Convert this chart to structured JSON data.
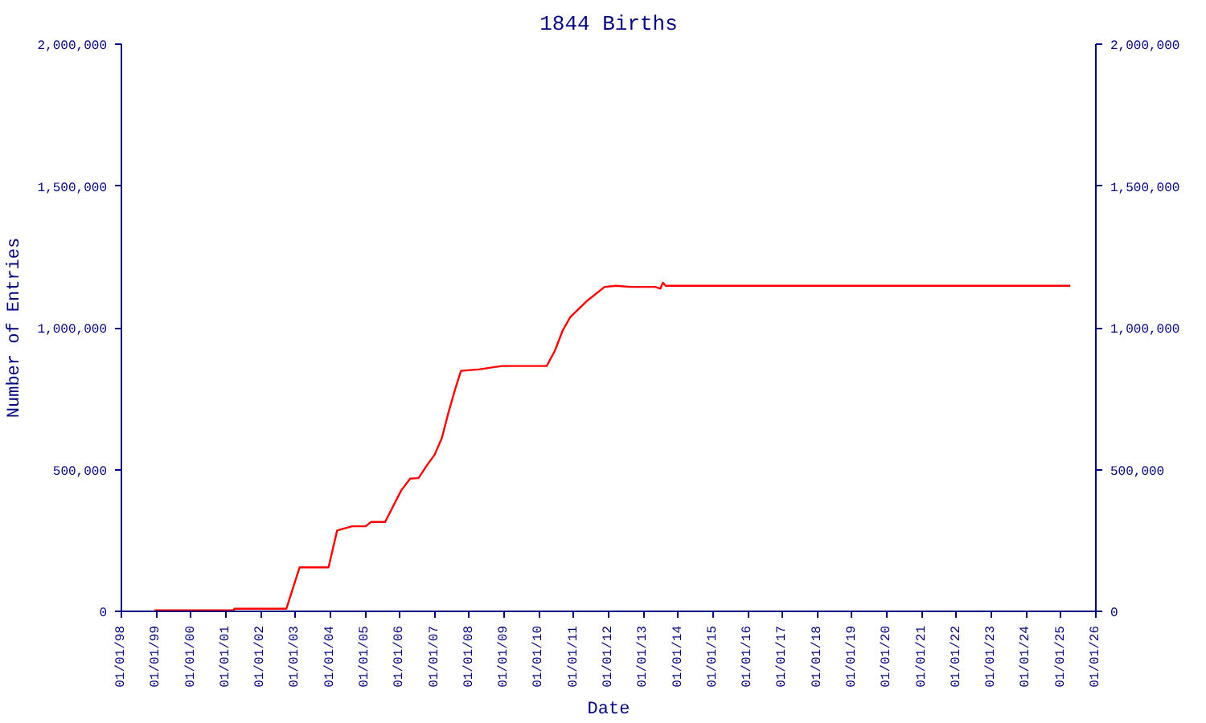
{
  "chart_data": {
    "type": "line",
    "title": "1844 Births",
    "xlabel": "Date",
    "ylabel": "Number of Entries",
    "x": [
      "1998-12-15",
      "2001-03-25",
      "2001-04-01",
      "2002-09-28",
      "2003-02-14",
      "2003-12-15",
      "2004-03-14",
      "2004-08-18",
      "2005-01-08",
      "2005-03-03",
      "2005-07-31",
      "2006-01-15",
      "2006-04-20",
      "2006-07-16",
      "2006-10-19",
      "2007-01-01",
      "2007-03-18",
      "2007-05-26",
      "2007-07-31",
      "2007-10-05",
      "2008-04-08",
      "2008-12-06",
      "2010-03-22",
      "2010-06-14",
      "2010-09-06",
      "2010-11-24",
      "2011-05-10",
      "2011-11-20",
      "2012-03-14",
      "2012-08-22",
      "2013-05-04",
      "2013-06-28",
      "2013-07-24",
      "2013-08-22",
      "2025-04-08"
    ],
    "series": [
      {
        "color": "#ff0000",
        "values": [
          4000,
          4000,
          9000,
          9000,
          155000,
          155000,
          285000,
          300000,
          300000,
          315000,
          315000,
          426000,
          468000,
          470000,
          518000,
          552000,
          611000,
          700000,
          778000,
          848000,
          853000,
          865000,
          865000,
          917000,
          990000,
          1037000,
          1092000,
          1144000,
          1148000,
          1144000,
          1144000,
          1138000,
          1159000,
          1148000,
          1148000
        ]
      }
    ],
    "xlim": [
      "1998-01-01",
      "2026-01-01"
    ],
    "xticks": [
      {
        "value": "1998-01-01",
        "label": "01/01/98"
      },
      {
        "value": "1999-01-01",
        "label": "01/01/99"
      },
      {
        "value": "2000-01-01",
        "label": "01/01/00"
      },
      {
        "value": "2001-01-01",
        "label": "01/01/01"
      },
      {
        "value": "2002-01-01",
        "label": "01/01/02"
      },
      {
        "value": "2003-01-01",
        "label": "01/01/03"
      },
      {
        "value": "2004-01-01",
        "label": "01/01/04"
      },
      {
        "value": "2005-01-01",
        "label": "01/01/05"
      },
      {
        "value": "2006-01-01",
        "label": "01/01/06"
      },
      {
        "value": "2007-01-01",
        "label": "01/01/07"
      },
      {
        "value": "2008-01-01",
        "label": "01/01/08"
      },
      {
        "value": "2009-01-01",
        "label": "01/01/09"
      },
      {
        "value": "2010-01-01",
        "label": "01/01/10"
      },
      {
        "value": "2011-01-01",
        "label": "01/01/11"
      },
      {
        "value": "2012-01-01",
        "label": "01/01/12"
      },
      {
        "value": "2013-01-01",
        "label": "01/01/13"
      },
      {
        "value": "2014-01-01",
        "label": "01/01/14"
      },
      {
        "value": "2015-01-01",
        "label": "01/01/15"
      },
      {
        "value": "2016-01-01",
        "label": "01/01/16"
      },
      {
        "value": "2017-01-01",
        "label": "01/01/17"
      },
      {
        "value": "2018-01-01",
        "label": "01/01/18"
      },
      {
        "value": "2019-01-01",
        "label": "01/01/19"
      },
      {
        "value": "2020-01-01",
        "label": "01/01/20"
      },
      {
        "value": "2021-01-01",
        "label": "01/01/21"
      },
      {
        "value": "2022-01-01",
        "label": "01/01/22"
      },
      {
        "value": "2023-01-01",
        "label": "01/01/23"
      },
      {
        "value": "2024-01-01",
        "label": "01/01/24"
      },
      {
        "value": "2025-01-01",
        "label": "01/01/25"
      },
      {
        "value": "2026-01-01",
        "label": "01/01/26"
      }
    ],
    "ylim": [
      0,
      2000000
    ],
    "yticks": [
      0,
      {
        "value": 500000,
        "label": "500,000"
      },
      {
        "value": 1000000,
        "label": "1,000,000"
      },
      {
        "value": 1500000,
        "label": "1,500,000"
      },
      {
        "value": 2000000,
        "label": "2,000,000"
      }
    ],
    "y2lim": [
      0,
      2000000
    ],
    "y2ticks": [
      0,
      {
        "value": 500000,
        "label": "500,000"
      },
      {
        "value": 1000000,
        "label": "1,000,000"
      },
      {
        "value": 1500000,
        "label": "1,500,000"
      },
      {
        "value": 2000000,
        "label": "2,000,000"
      }
    ],
    "grid": false,
    "marker": "none",
    "line_style": "solid"
  }
}
